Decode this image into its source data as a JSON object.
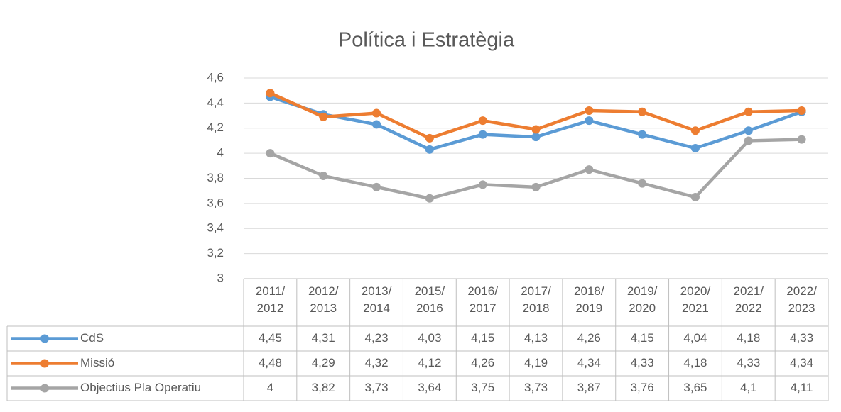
{
  "chart_data": {
    "type": "line",
    "title": "Política i Estratègia",
    "categories": [
      "2011/2012",
      "2012/2013",
      "2013/2014",
      "2015/2016",
      "2016/2017",
      "2017/2018",
      "2018/2019",
      "2019/2020",
      "2020/2021",
      "2021/2022",
      "2022/2023"
    ],
    "series": [
      {
        "name": "CdS",
        "color": "#5b9bd5",
        "values": [
          4.45,
          4.31,
          4.23,
          4.03,
          4.15,
          4.13,
          4.26,
          4.15,
          4.04,
          4.18,
          4.33
        ],
        "value_labels": [
          "4,45",
          "4,31",
          "4,23",
          "4,03",
          "4,15",
          "4,13",
          "4,26",
          "4,15",
          "4,04",
          "4,18",
          "4,33"
        ]
      },
      {
        "name": "Missió",
        "color": "#ed7d31",
        "values": [
          4.48,
          4.29,
          4.32,
          4.12,
          4.26,
          4.19,
          4.34,
          4.33,
          4.18,
          4.33,
          4.34
        ],
        "value_labels": [
          "4,48",
          "4,29",
          "4,32",
          "4,12",
          "4,26",
          "4,19",
          "4,34",
          "4,33",
          "4,18",
          "4,33",
          "4,34"
        ]
      },
      {
        "name": "Objectius Pla Operatiu",
        "color": "#a5a5a5",
        "values": [
          4,
          3.82,
          3.73,
          3.64,
          3.75,
          3.73,
          3.87,
          3.76,
          3.65,
          4.1,
          4.11
        ],
        "value_labels": [
          "4",
          "3,82",
          "3,73",
          "3,64",
          "3,75",
          "3,73",
          "3,87",
          "3,76",
          "3,65",
          "4,1",
          "4,11"
        ]
      }
    ],
    "ylim": [
      3,
      4.6
    ],
    "yticks": [
      3,
      {
        "value": 3.2,
        "label": "3,2"
      },
      {
        "value": 3.4,
        "label": "3,4"
      },
      {
        "value": 3.6,
        "label": "3,6"
      },
      {
        "value": 3.8,
        "label": "3,8"
      },
      4,
      {
        "value": 4.2,
        "label": "4,2"
      },
      {
        "value": 4.4,
        "label": "4,4"
      },
      {
        "value": 4.6,
        "label": "4,6"
      }
    ],
    "grid": true
  }
}
